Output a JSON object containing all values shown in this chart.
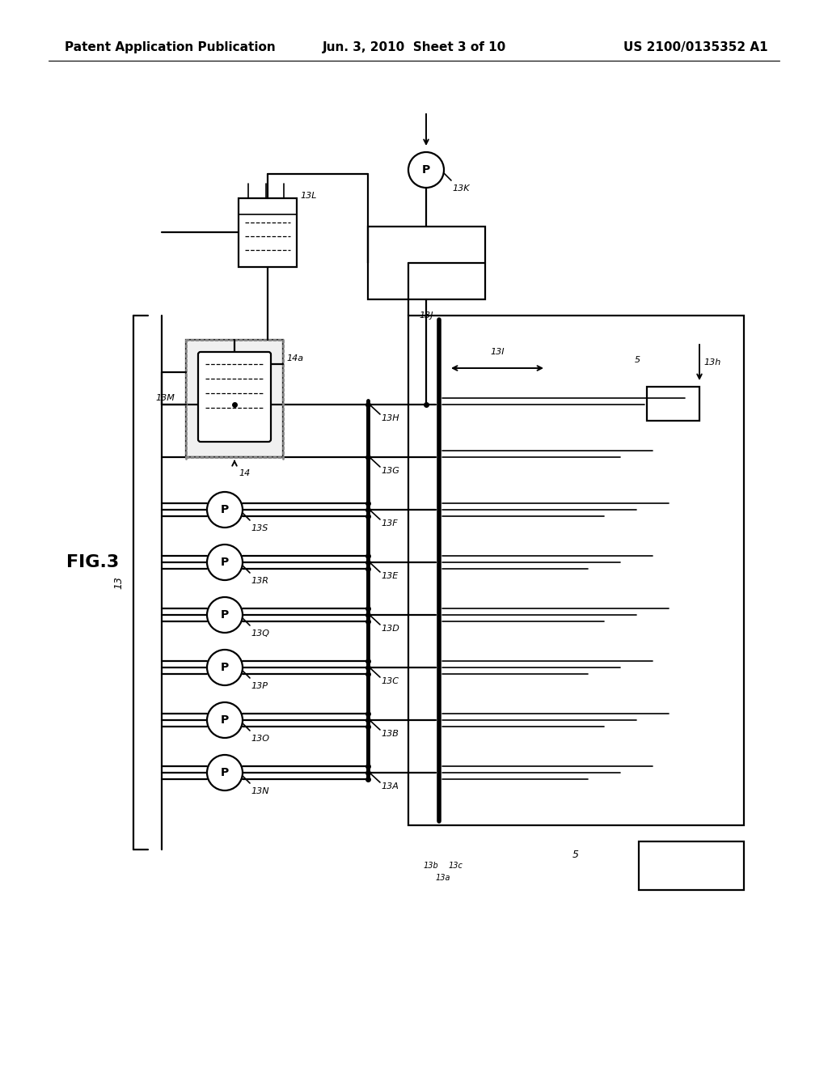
{
  "bg_color": "#ffffff",
  "header_left": "Patent Application Publication",
  "header_center": "Jun. 3, 2010  Sheet 3 of 10",
  "header_right": "US 2100/0135352 A1",
  "fig_label": "FIG.3",
  "pump_labels": [
    "13N",
    "13O",
    "13P",
    "13Q",
    "13R",
    "13S"
  ],
  "channel_labels_left": [
    "13A",
    "13B",
    "13C",
    "13D",
    "13E",
    "13F"
  ],
  "channel_labels_top": [
    "13G",
    "13H"
  ],
  "label_13K": "13K",
  "label_13J": "13J",
  "label_13L": "13L",
  "label_13M": "13M",
  "label_14": "14",
  "label_14a": "14a",
  "label_13I": "13I",
  "label_13h": "13h",
  "label_5": "5",
  "label_13a": "13a",
  "label_13b": "13b",
  "label_13c": "13c",
  "label_13": "13"
}
